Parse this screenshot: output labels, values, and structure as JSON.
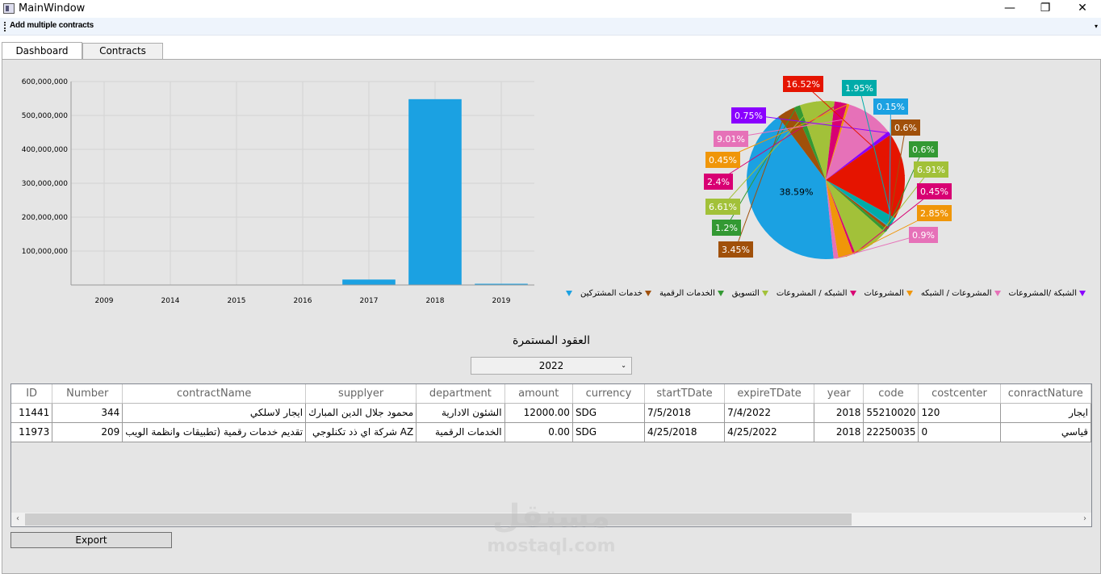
{
  "window": {
    "title": "MainWindow",
    "minimize": "—",
    "maximize": "❐",
    "close": "✕"
  },
  "toolbar": {
    "add_multiple_label": "Add multiple contracts",
    "overflow": "▾"
  },
  "tabs": [
    {
      "label": "Dashboard",
      "active": true
    },
    {
      "label": "Contracts",
      "active": false
    }
  ],
  "chart_data": [
    {
      "type": "bar",
      "categories": [
        "2009",
        "2014",
        "2015",
        "2016",
        "2017",
        "2018",
        "2019"
      ],
      "values": [
        0,
        0,
        0,
        0,
        16000000,
        548000000,
        2000000
      ],
      "ylim": [
        0,
        600000000
      ],
      "yticks": [
        "100,000,000",
        "200,000,000",
        "300,000,000",
        "400,000,000",
        "500,000,000",
        "600,000,000"
      ],
      "bar_color": "#1ba1e2",
      "grid": true
    },
    {
      "type": "pie",
      "slices": [
        {
          "label": "38.59%",
          "value": 38.59,
          "color": "#1ba1e2",
          "inside": true
        },
        {
          "label": "3.45%",
          "value": 3.45,
          "color": "#a0500a"
        },
        {
          "label": "1.2%",
          "value": 1.2,
          "color": "#339933"
        },
        {
          "label": "6.61%",
          "value": 6.61,
          "color": "#a2c139"
        },
        {
          "label": "2.4%",
          "value": 2.4,
          "color": "#d80073"
        },
        {
          "label": "0.45%",
          "value": 0.45,
          "color": "#f09609"
        },
        {
          "label": "9.01%",
          "value": 9.01,
          "color": "#e671b8"
        },
        {
          "label": "0.75%",
          "value": 0.75,
          "color": "#8a00ff"
        },
        {
          "label": "16.52%",
          "value": 16.52,
          "color": "#e51400"
        },
        {
          "label": "1.95%",
          "value": 1.95,
          "color": "#00aba9"
        },
        {
          "label": "0.15%",
          "value": 0.15,
          "color": "#1ba1e2"
        },
        {
          "label": "0.6%",
          "value": 0.6,
          "color": "#a0500a"
        },
        {
          "label": "0.6%",
          "value": 0.6,
          "color": "#339933"
        },
        {
          "label": "6.91%",
          "value": 6.91,
          "color": "#a2c139"
        },
        {
          "label": "0.45%",
          "value": 0.45,
          "color": "#d80073"
        },
        {
          "label": "2.85%",
          "value": 2.85,
          "color": "#f09609"
        },
        {
          "label": "0.9%",
          "value": 0.9,
          "color": "#e671b8"
        }
      ],
      "legend_position": "bottom",
      "legend": [
        {
          "label": "",
          "color": "#1ba1e2"
        },
        {
          "label": "خدمات المشتركين",
          "color": "#a0500a"
        },
        {
          "label": "الخدمات الرقمية",
          "color": "#339933"
        },
        {
          "label": "التسويق",
          "color": "#a2c139"
        },
        {
          "label": "الشبكه / المشروعات",
          "color": "#d80073"
        },
        {
          "label": "المشروعات",
          "color": "#f09609"
        },
        {
          "label": "المشروعات / الشبكه",
          "color": "#e671b8"
        },
        {
          "label": "الشبكة /المشروعات",
          "color": "#8a00ff"
        }
      ]
    }
  ],
  "section": {
    "title": "العقود المستمرة",
    "year_selected": "2022",
    "caret": "⌄"
  },
  "grid": {
    "columns": [
      "ID",
      "Number",
      "contractName",
      "supplyer",
      "department",
      "amount",
      "currency",
      "startTDate",
      "expireTDate",
      "year",
      "code",
      "costcenter",
      "conractNature"
    ],
    "rows": [
      [
        "11441",
        "344",
        "ايجار لاسلكي",
        "محمود جلال الدين المبارك",
        "الشئون الادارية",
        "12000.00",
        "SDG",
        "7/5/2018",
        "7/4/2022",
        "2018",
        "55210020",
        "120",
        "ايجار"
      ],
      [
        "11973",
        "209",
        "تقديم خدمات رقمية (تطبيقات وانظمة الويب",
        "AZ شركة اي ذد تكنلوجي",
        "الخدمات الرقمية",
        "0.00",
        "SDG",
        "4/25/2018",
        "4/25/2022",
        "2018",
        "22250035",
        "0",
        "قياسي"
      ]
    ],
    "scroll_left": "‹",
    "scroll_right": "›"
  },
  "export_label": "Export",
  "watermark": {
    "arabic": "مستقل",
    "latin": "mostaql.com"
  }
}
